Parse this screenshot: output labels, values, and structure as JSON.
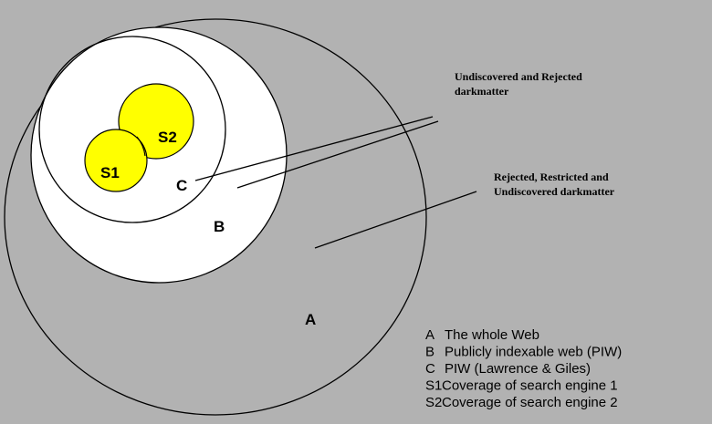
{
  "nodes": [
    {
      "label": "A"
    },
    {
      "label": "B"
    },
    {
      "label": "C"
    },
    {
      "label": "S1"
    },
    {
      "label": "S2"
    }
  ],
  "annotations": [
    {
      "lines": [
        "Undiscovered and Rejected",
        "darkmatter"
      ]
    },
    {
      "lines": [
        "Rejected, Restricted and",
        "Undiscovered darkmatter"
      ]
    }
  ],
  "legend": [
    {
      "key": "A",
      "text": "The whole Web"
    },
    {
      "key": "B",
      "text": "Publicly indexable web (PIW)"
    },
    {
      "key": "C",
      "text": "PIW (Lawrence & Giles)"
    },
    {
      "key": "S1",
      "text": "Coverage of search engine 1"
    },
    {
      "key": "S2",
      "text": "Coverage of search engine 2"
    }
  ]
}
